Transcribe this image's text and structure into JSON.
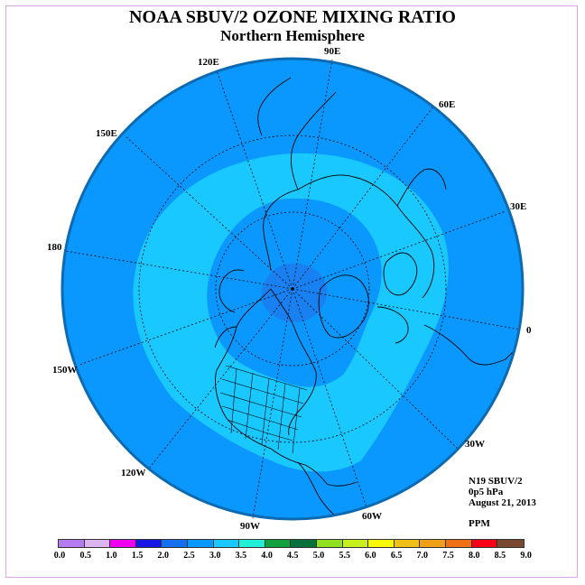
{
  "title": "NOAA SBUV/2 OZONE MIXING RATIO",
  "subtitle": "Northern Hemisphere",
  "longitude_labels": [
    {
      "id": "90E",
      "text": "90E"
    },
    {
      "id": "60E",
      "text": "60E"
    },
    {
      "id": "30E",
      "text": "30E"
    },
    {
      "id": "0",
      "text": "0"
    },
    {
      "id": "30W",
      "text": "30W"
    },
    {
      "id": "60W",
      "text": "60W"
    },
    {
      "id": "90W",
      "text": "90W"
    },
    {
      "id": "120W",
      "text": "120W"
    },
    {
      "id": "150W",
      "text": "150W"
    },
    {
      "id": "180",
      "text": "180"
    },
    {
      "id": "150E",
      "text": "150E"
    },
    {
      "id": "120E",
      "text": "120E"
    }
  ],
  "info": {
    "instrument": "N19 SBUV/2",
    "level": "0p5 hPa",
    "date": "August 21, 2013",
    "units": "PPM"
  },
  "colors": {
    "field_outer": "#0a98ff",
    "field_ring": "#18c8ff",
    "field_inner": "#0a98ff",
    "field_pole": "#1880f0",
    "rim": "#0d6ab0"
  },
  "colorbar": {
    "labels": [
      "0.0",
      "0.5",
      "1.0",
      "1.5",
      "2.0",
      "2.5",
      "3.0",
      "3.5",
      "4.0",
      "4.5",
      "5.0",
      "5.5",
      "6.0",
      "6.5",
      "7.0",
      "7.5",
      "8.0",
      "8.5",
      "9.0"
    ],
    "colors": [
      "#b47cf0",
      "#dcb4f0",
      "#ee00ee",
      "#1818e6",
      "#1470f0",
      "#0a98ff",
      "#18c8ff",
      "#20f0d8",
      "#10a040",
      "#08703a",
      "#90e020",
      "#c8f020",
      "#f8f808",
      "#f0c018",
      "#f0a018",
      "#f07018",
      "#f80018",
      "#784830"
    ]
  }
}
